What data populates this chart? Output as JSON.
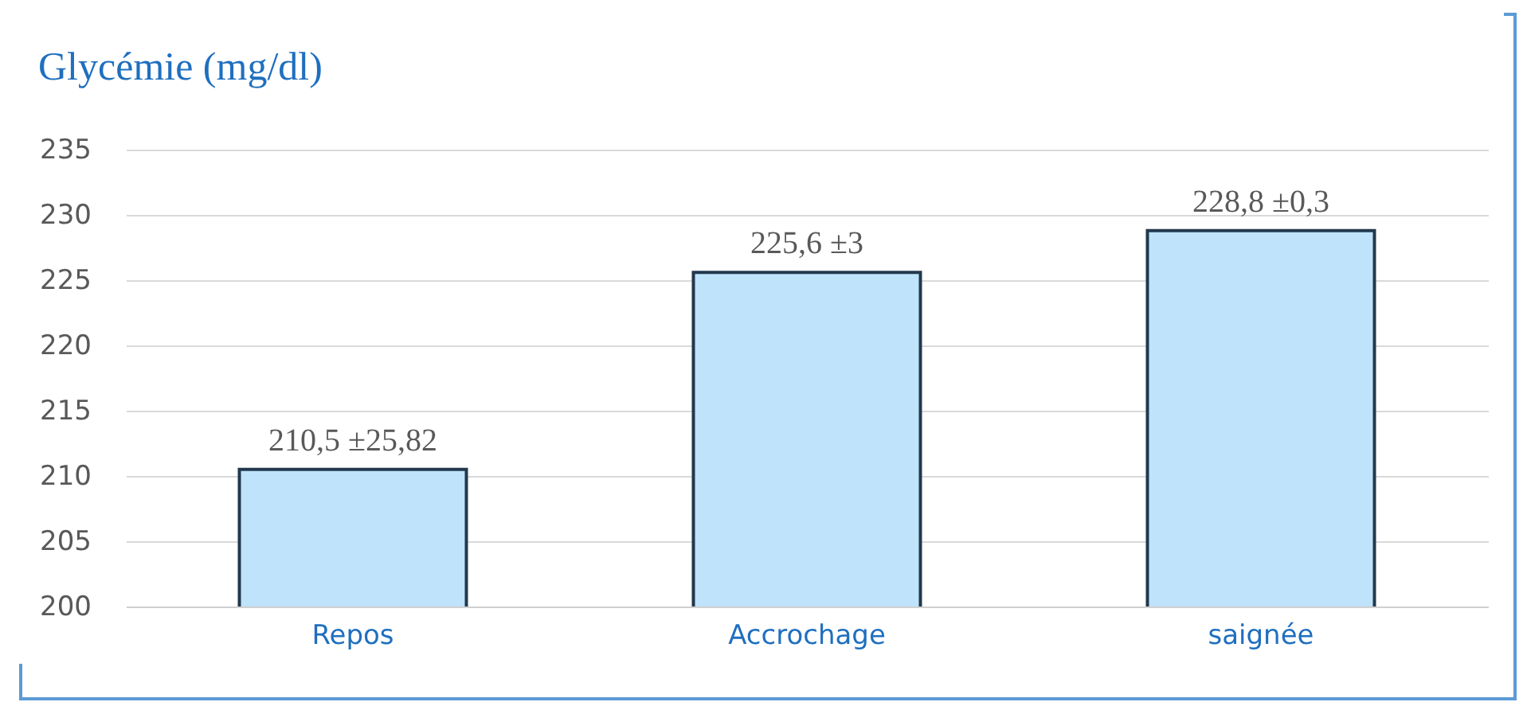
{
  "chart_data": {
    "type": "bar",
    "title": "Glycémie (mg/dl)",
    "categories": [
      "Repos",
      "Accrochage",
      "saignée"
    ],
    "values": [
      210.5,
      225.6,
      228.8
    ],
    "value_labels": [
      "210,5 ±25,82",
      "225,6 ±3",
      "228,8 ±0,3"
    ],
    "color": "#bfe3fb",
    "ylim": [
      200,
      235
    ],
    "yticks": [
      200,
      205,
      210,
      215,
      220,
      225,
      230,
      235
    ],
    "grid": "y"
  }
}
